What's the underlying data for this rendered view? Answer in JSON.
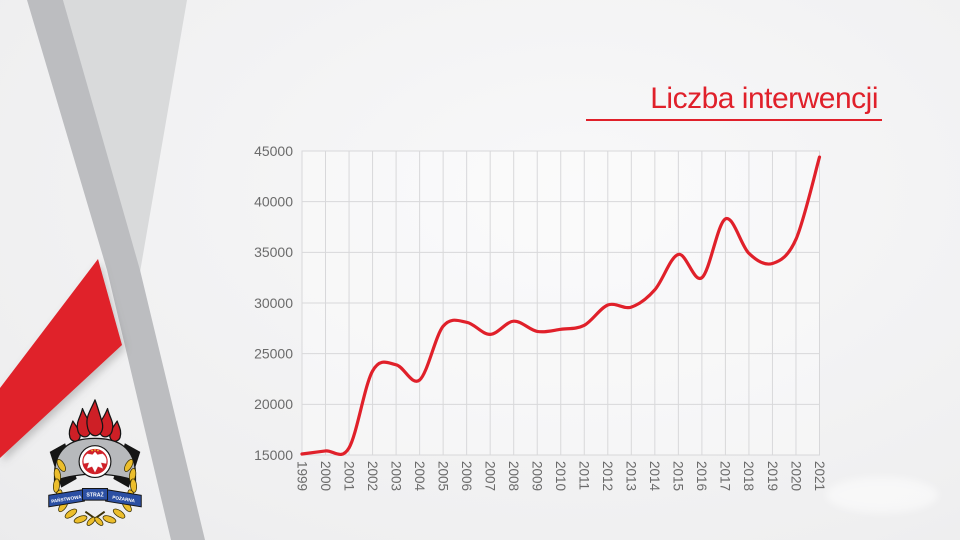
{
  "slide": {
    "title": "Liczba interwencji",
    "accent_color": "#e0202a"
  },
  "logo": {
    "name": "Państwowa Straż Pożarna emblem",
    "ribbon_left": "PAŃSTWOWA",
    "ribbon_center": "STRAŻ",
    "ribbon_right": "POŻARNA",
    "flame_color": "#ce1f26",
    "ribbon_color": "#2b4fa3",
    "wreath_color": "#ecbe2c"
  },
  "chart_data": {
    "type": "line",
    "title": "Liczba interwencji",
    "xlabel": "",
    "ylabel": "",
    "categories": [
      "1999",
      "2000",
      "2001",
      "2002",
      "2003",
      "2004",
      "2005",
      "2006",
      "2007",
      "2008",
      "2009",
      "2010",
      "2011",
      "2012",
      "2013",
      "2014",
      "2015",
      "2016",
      "2017",
      "2018",
      "2019",
      "2020",
      "2021"
    ],
    "values": [
      15100,
      15400,
      15700,
      23300,
      23900,
      22400,
      27700,
      28100,
      26900,
      28200,
      27200,
      27400,
      27800,
      29800,
      29600,
      31300,
      34800,
      32500,
      38300,
      34900,
      33900,
      36300,
      44400
    ],
    "ylim": [
      15000,
      45000
    ],
    "ytick_step": 5000,
    "grid": true,
    "legend": "none",
    "line_color": "#e0202a",
    "grid_color": "#d8d8da",
    "label_color": "#6b6b6b"
  }
}
